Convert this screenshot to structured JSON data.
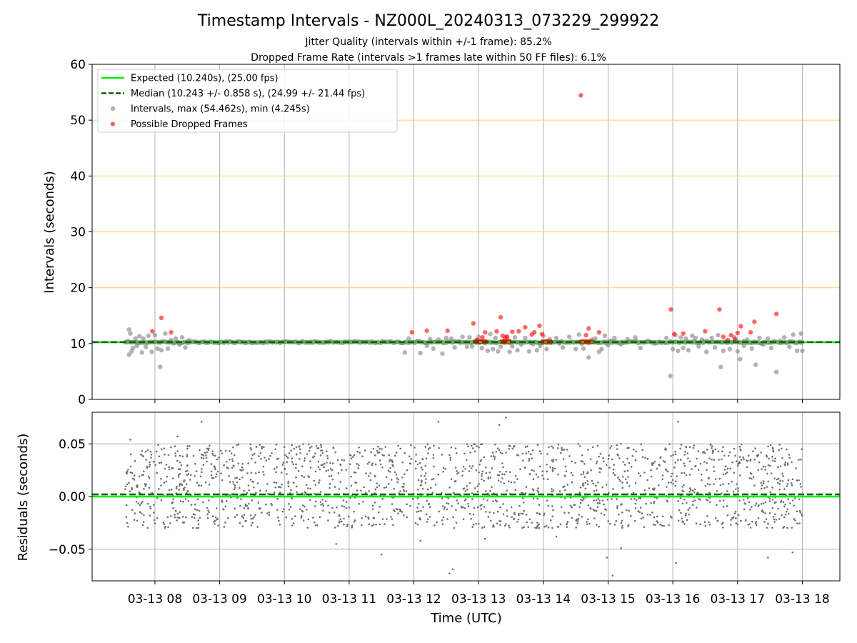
{
  "chart_data": {
    "title": "Timestamp Intervals - NZ000L_20240313_073229_299922",
    "subtitle_lines": [
      "Jitter Quality (intervals within +/-1 frame): 85.2%",
      "Dropped Frame Rate (intervals >1 frames late within 50 FF files): 6.1%"
    ],
    "xlabel": "Time (UTC)",
    "x_ticks": [
      {
        "hour": 8,
        "label": "03-13 08"
      },
      {
        "hour": 9,
        "label": "03-13 09"
      },
      {
        "hour": 10,
        "label": "03-13 10"
      },
      {
        "hour": 11,
        "label": "03-13 11"
      },
      {
        "hour": 12,
        "label": "03-13 12"
      },
      {
        "hour": 13,
        "label": "03-13 13"
      },
      {
        "hour": 14,
        "label": "03-13 14"
      },
      {
        "hour": 15,
        "label": "03-13 15"
      },
      {
        "hour": 16,
        "label": "03-13 16"
      },
      {
        "hour": 17,
        "label": "03-13 17"
      },
      {
        "hour": 18,
        "label": "03-13 18"
      }
    ],
    "xlim_hours": [
      7.03,
      18.58
    ],
    "data_span_hours": [
      7.54,
      18.0
    ],
    "colors": {
      "expected": "#00ee00",
      "median": "#006400",
      "intervals": "#808080",
      "dropped": "#ff0000",
      "threshold": "#ffd27a",
      "grid": "#b0b0b0"
    },
    "charts": [
      {
        "id": "intervals",
        "type": "scatter",
        "ylabel": "Intervals (seconds)",
        "ylim": [
          0,
          60
        ],
        "y_ticks": [
          {
            "value": 0,
            "label": "0"
          },
          {
            "value": 10,
            "label": "10"
          },
          {
            "value": 20,
            "label": "20"
          },
          {
            "value": 30,
            "label": "30"
          },
          {
            "value": 40,
            "label": "40"
          },
          {
            "value": 50,
            "label": "50"
          },
          {
            "value": 60,
            "label": "60"
          }
        ],
        "threshold_lines": [
          20,
          30,
          40,
          50
        ],
        "expected_value": 10.24,
        "median_value": 10.243,
        "legend": {
          "placement": "top-left",
          "entries": [
            {
              "kind": "line",
              "color": "#00ee00",
              "dashed": false,
              "label": "Expected (10.240s), (25.00 fps)"
            },
            {
              "kind": "line",
              "color": "#006400",
              "dashed": true,
              "label": "Median (10.243 +/- 0.858 s), (24.99 +/- 21.44 fps)"
            },
            {
              "kind": "dot",
              "color": "#808080",
              "label": "Intervals, max (54.462s), min (4.245s)"
            },
            {
              "kind": "dot",
              "color": "#ff0000",
              "label": "Possible Dropped Frames"
            }
          ]
        },
        "series": [
          {
            "name": "Intervals, max (54.462s), min (4.245s)",
            "points": [
              [
                7.58,
                10.4
              ],
              [
                7.6,
                12.5
              ],
              [
                7.62,
                11.8
              ],
              [
                7.6,
                8.0
              ],
              [
                7.64,
                8.6
              ],
              [
                7.66,
                9.2
              ],
              [
                7.7,
                10.9
              ],
              [
                7.72,
                9.6
              ],
              [
                7.76,
                11.3
              ],
              [
                7.8,
                8.4
              ],
              [
                7.82,
                10.9
              ],
              [
                7.86,
                9.4
              ],
              [
                7.9,
                11.4
              ],
              [
                7.95,
                8.5
              ],
              [
                8.0,
                11.5
              ],
              [
                8.04,
                9.1
              ],
              [
                8.08,
                5.8
              ],
              [
                8.1,
                8.8
              ],
              [
                8.16,
                11.8
              ],
              [
                8.2,
                9.1
              ],
              [
                8.25,
                10.6
              ],
              [
                8.32,
                10.9
              ],
              [
                8.38,
                9.8
              ],
              [
                8.42,
                11.1
              ],
              [
                8.47,
                9.3
              ],
              [
                8.52,
                10.6
              ],
              [
                11.86,
                8.4
              ],
              [
                11.92,
                10.9
              ],
              [
                12.05,
                10.4
              ],
              [
                12.1,
                8.3
              ],
              [
                12.2,
                9.6
              ],
              [
                12.25,
                10.8
              ],
              [
                12.3,
                9.1
              ],
              [
                12.38,
                10.7
              ],
              [
                12.44,
                8.2
              ],
              [
                12.5,
                11.0
              ],
              [
                12.58,
                10.9
              ],
              [
                12.63,
                9.3
              ],
              [
                12.7,
                10.4
              ],
              [
                12.75,
                11.2
              ],
              [
                12.82,
                9.4
              ],
              [
                12.86,
                11.1
              ],
              [
                12.9,
                9.5
              ],
              [
                12.96,
                10.6
              ],
              [
                13.0,
                11.2
              ],
              [
                13.05,
                9.2
              ],
              [
                13.1,
                10.1
              ],
              [
                13.14,
                8.7
              ],
              [
                13.18,
                11.7
              ],
              [
                13.22,
                9.0
              ],
              [
                13.26,
                11.0
              ],
              [
                13.3,
                8.6
              ],
              [
                13.34,
                9.4
              ],
              [
                13.38,
                10.4
              ],
              [
                13.43,
                11.3
              ],
              [
                13.48,
                8.5
              ],
              [
                13.52,
                9.5
              ],
              [
                13.56,
                11.1
              ],
              [
                13.6,
                8.8
              ],
              [
                13.66,
                9.8
              ],
              [
                13.72,
                11.0
              ],
              [
                13.78,
                8.6
              ],
              [
                13.84,
                9.9
              ],
              [
                13.9,
                8.8
              ],
              [
                13.95,
                9.6
              ],
              [
                14.0,
                11.4
              ],
              [
                14.05,
                9.0
              ],
              [
                14.1,
                10.8
              ],
              [
                14.2,
                11.0
              ],
              [
                14.25,
                10.0
              ],
              [
                14.3,
                9.3
              ],
              [
                14.4,
                11.2
              ],
              [
                14.5,
                9.0
              ],
              [
                14.55,
                11.6
              ],
              [
                14.62,
                9.1
              ],
              [
                14.7,
                7.5
              ],
              [
                14.75,
                10.7
              ],
              [
                14.8,
                10.9
              ],
              [
                14.86,
                8.5
              ],
              [
                14.9,
                9.0
              ],
              [
                14.95,
                11.4
              ],
              [
                15.0,
                9.7
              ],
              [
                15.05,
                10.5
              ],
              [
                15.1,
                11.0
              ],
              [
                15.2,
                9.9
              ],
              [
                15.3,
                10.8
              ],
              [
                15.42,
                11.1
              ],
              [
                15.5,
                9.2
              ],
              [
                15.6,
                10.4
              ],
              [
                15.72,
                10.0
              ],
              [
                15.9,
                11.0
              ],
              [
                15.96,
                4.2
              ],
              [
                16.0,
                9.0
              ],
              [
                16.04,
                11.5
              ],
              [
                16.08,
                8.7
              ],
              [
                16.12,
                11.1
              ],
              [
                16.16,
                9.2
              ],
              [
                16.2,
                10.9
              ],
              [
                16.24,
                8.8
              ],
              [
                16.3,
                11.4
              ],
              [
                16.35,
                11.0
              ],
              [
                16.4,
                9.5
              ],
              [
                16.45,
                10.7
              ],
              [
                16.52,
                8.5
              ],
              [
                16.6,
                11.0
              ],
              [
                16.65,
                9.3
              ],
              [
                16.7,
                11.5
              ],
              [
                16.74,
                5.8
              ],
              [
                16.78,
                8.7
              ],
              [
                16.82,
                10.4
              ],
              [
                16.88,
                9.0
              ],
              [
                16.95,
                11.1
              ],
              [
                17.0,
                8.6
              ],
              [
                17.04,
                7.2
              ],
              [
                17.1,
                9.6
              ],
              [
                17.15,
                10.7
              ],
              [
                17.22,
                9.1
              ],
              [
                17.28,
                6.2
              ],
              [
                17.34,
                11.0
              ],
              [
                17.4,
                9.8
              ],
              [
                17.47,
                10.9
              ],
              [
                17.52,
                9.2
              ],
              [
                17.6,
                4.9
              ],
              [
                17.66,
                10.5
              ],
              [
                17.72,
                11.1
              ],
              [
                17.8,
                9.4
              ],
              [
                17.86,
                11.6
              ],
              [
                17.92,
                8.7
              ],
              [
                17.98,
                11.8
              ],
              [
                18.0,
                8.7
              ],
              [
                10.0,
                10.24
              ],
              [
                9.0,
                10.24
              ],
              [
                11.0,
                10.24
              ],
              [
                13.4,
                10.3
              ],
              [
                13.8,
                10.3
              ]
            ]
          },
          {
            "name": "Possible Dropped Frames",
            "points": [
              [
                7.96,
                12.2
              ],
              [
                8.1,
                14.6
              ],
              [
                8.25,
                12.0
              ],
              [
                11.97,
                12.0
              ],
              [
                12.2,
                12.3
              ],
              [
                12.52,
                12.3
              ],
              [
                12.92,
                13.6
              ],
              [
                12.98,
                10.6
              ],
              [
                13.02,
                10.4
              ],
              [
                13.06,
                11.1
              ],
              [
                13.1,
                12.0
              ],
              [
                13.28,
                12.2
              ],
              [
                13.34,
                14.7
              ],
              [
                13.37,
                11.4
              ],
              [
                13.41,
                10.9
              ],
              [
                13.44,
                11.2
              ],
              [
                13.47,
                10.5
              ],
              [
                13.52,
                12.1
              ],
              [
                13.62,
                12.2
              ],
              [
                13.72,
                12.9
              ],
              [
                13.82,
                11.6
              ],
              [
                13.86,
                12.0
              ],
              [
                13.94,
                13.2
              ],
              [
                13.98,
                11.7
              ],
              [
                14.02,
                10.3
              ],
              [
                14.06,
                10.4
              ],
              [
                14.1,
                10.3
              ],
              [
                14.58,
                54.46
              ],
              [
                14.62,
                10.3
              ],
              [
                14.66,
                11.5
              ],
              [
                14.7,
                12.7
              ],
              [
                14.74,
                10.3
              ],
              [
                14.86,
                12.0
              ],
              [
                15.97,
                16.1
              ],
              [
                16.02,
                11.7
              ],
              [
                16.16,
                11.8
              ],
              [
                16.5,
                12.2
              ],
              [
                16.72,
                16.1
              ],
              [
                16.78,
                11.2
              ],
              [
                16.85,
                10.6
              ],
              [
                16.9,
                11.5
              ],
              [
                16.96,
                10.8
              ],
              [
                17.0,
                11.9
              ],
              [
                17.05,
                13.1
              ],
              [
                17.2,
                12.0
              ],
              [
                17.26,
                13.9
              ],
              [
                17.6,
                15.3
              ]
            ],
            "runs": [
              {
                "start": 12.95,
                "end": 13.12,
                "value": 10.3
              },
              {
                "start": 13.35,
                "end": 13.48,
                "value": 10.3
              },
              {
                "start": 13.98,
                "end": 14.12,
                "value": 10.3
              },
              {
                "start": 14.58,
                "end": 14.76,
                "value": 10.3
              }
            ]
          }
        ]
      },
      {
        "id": "residuals",
        "type": "scatter",
        "ylabel": "Residuals (seconds)",
        "ylim": [
          -0.08,
          0.08
        ],
        "y_ticks": [
          {
            "value": 0.05,
            "label": "0.05"
          },
          {
            "value": 0.0,
            "label": "0.00"
          },
          {
            "value": -0.05,
            "label": "−0.05"
          }
        ],
        "expected_value": 0.0,
        "median_value": 0.002,
        "noise_band": [
          -0.03,
          0.05
        ],
        "series": [
          {
            "name": "Residuals",
            "points": [
              [
                7.62,
                0.054
              ],
              [
                8.35,
                0.057
              ],
              [
                8.72,
                0.071
              ],
              [
                12.38,
                0.071
              ],
              [
                13.42,
                0.075
              ],
              [
                13.32,
                0.068
              ],
              [
                11.5,
                -0.055
              ],
              [
                12.55,
                -0.073
              ],
              [
                12.6,
                -0.069
              ],
              [
                15.07,
                -0.075
              ],
              [
                14.98,
                -0.058
              ],
              [
                17.47,
                -0.058
              ],
              [
                17.85,
                -0.053
              ],
              [
                16.05,
                -0.063
              ],
              [
                16.08,
                0.071
              ],
              [
                15.2,
                -0.049
              ],
              [
                10.8,
                -0.045
              ],
              [
                12.1,
                -0.042
              ],
              [
                13.1,
                -0.04
              ],
              [
                14.2,
                -0.038
              ]
            ]
          }
        ]
      }
    ]
  }
}
